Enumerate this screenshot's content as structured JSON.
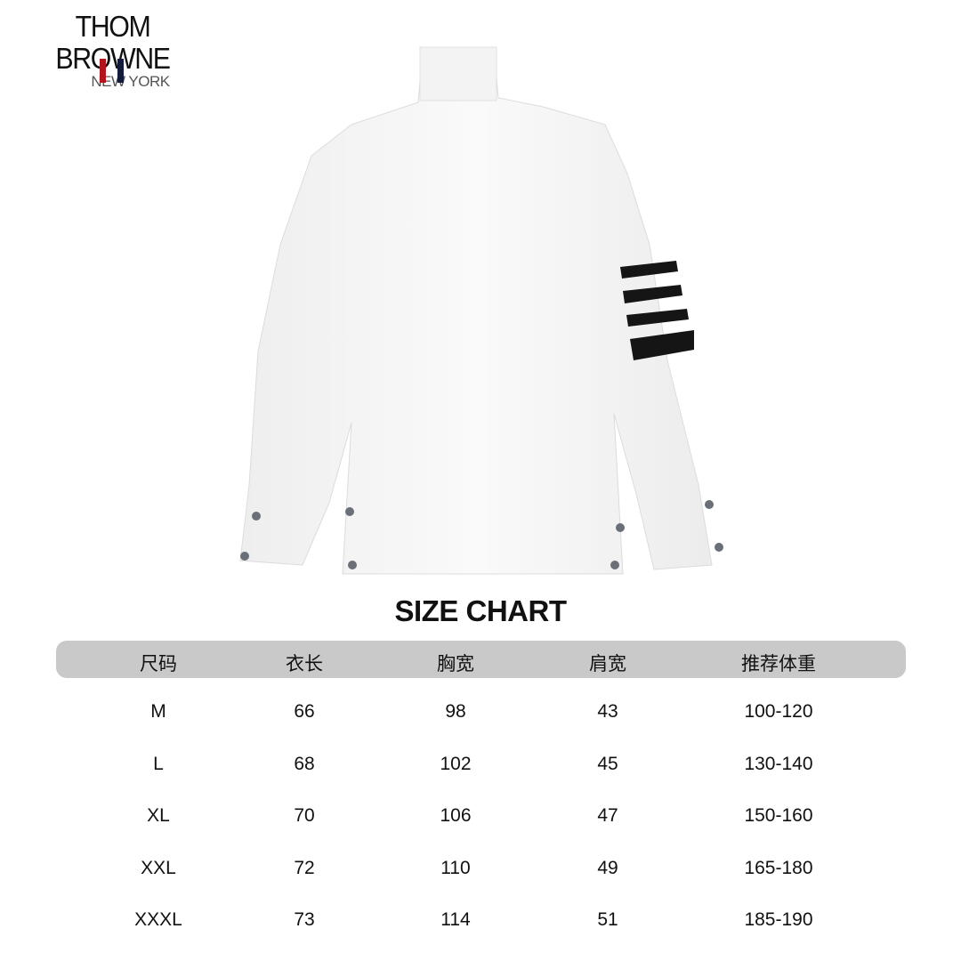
{
  "logo": {
    "brand": "THOM BROWNE",
    "city": "NEW YORK",
    "flag_colors": [
      "#b3151c",
      "#141a3a"
    ]
  },
  "title": "SIZE CHART",
  "table": {
    "columns": [
      "尺码",
      "衣长",
      "胸宽",
      "肩宽",
      "推荐体重"
    ],
    "rows": [
      [
        "M",
        "66",
        "98",
        "43",
        "100-120"
      ],
      [
        "L",
        "68",
        "102",
        "45",
        "130-140"
      ],
      [
        "XL",
        "70",
        "106",
        "47",
        "150-160"
      ],
      [
        "XXL",
        "72",
        "110",
        "49",
        "165-180"
      ],
      [
        "XXXL",
        "73",
        "114",
        "51",
        "185-190"
      ]
    ],
    "header_color": "#c9c9c9"
  }
}
